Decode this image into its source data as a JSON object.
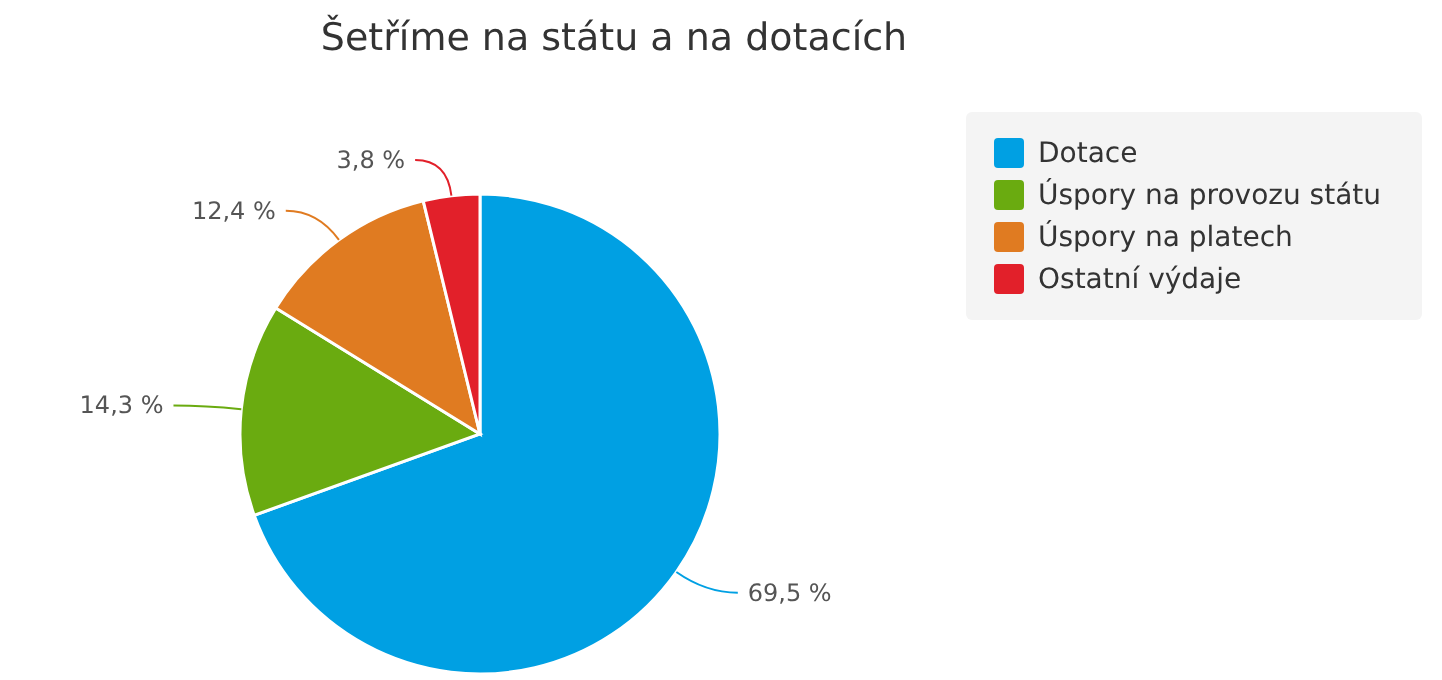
{
  "chart_data": {
    "type": "pie",
    "title": "Šetříme na státu a na dotacích",
    "categories": [
      "Dotace",
      "Úspory na provozu státu",
      "Úspory na platech",
      "Ostatní výdaje"
    ],
    "values": [
      69.5,
      14.3,
      12.4,
      3.8
    ],
    "colors": [
      "#00a0e3",
      "#6aab10",
      "#e07b21",
      "#e2202a"
    ],
    "value_labels": [
      "69,5 %",
      "14,3 %",
      "12,4 %",
      "3,8 %"
    ],
    "legend": "top right"
  }
}
